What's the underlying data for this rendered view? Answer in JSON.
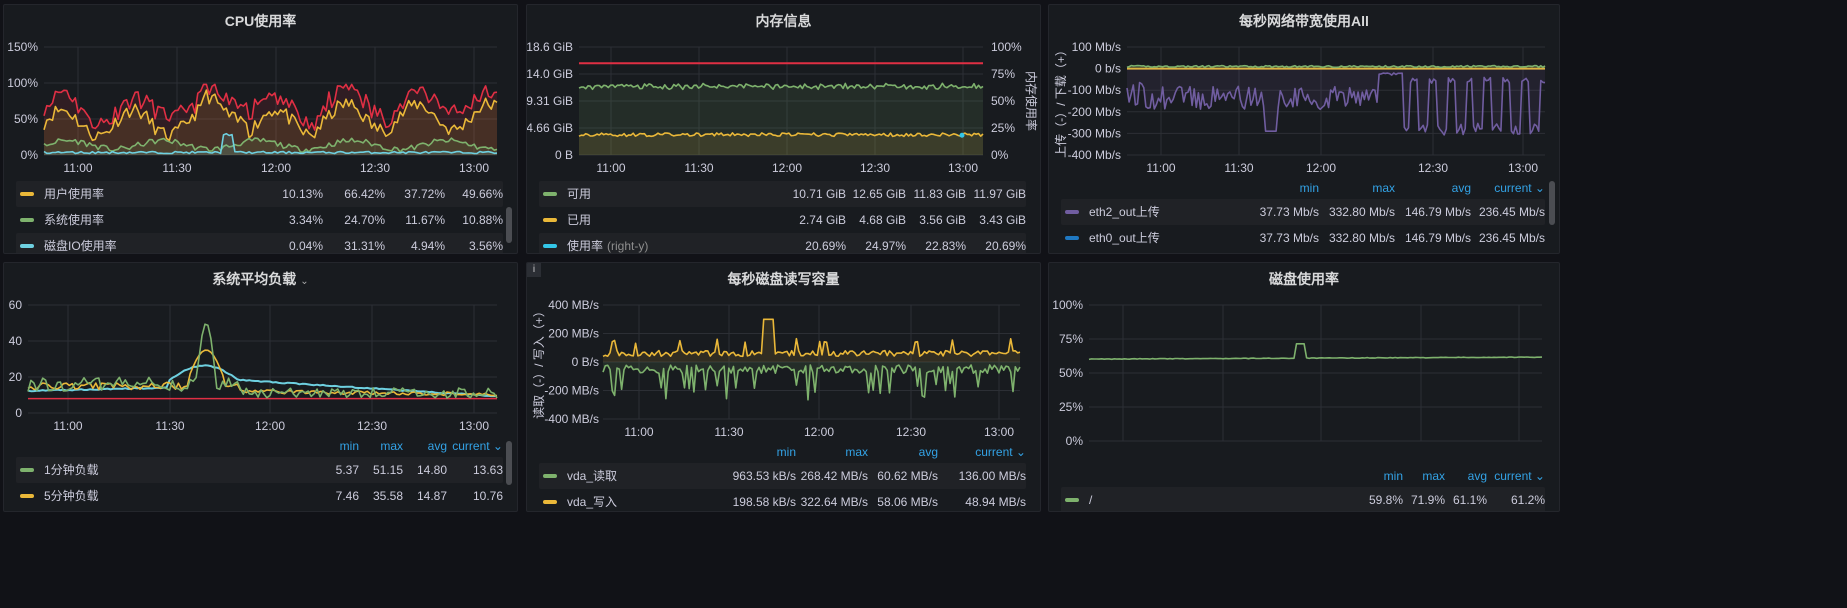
{
  "colors": {
    "panel_bg": "#181b1f",
    "grid": "#2c2f35",
    "accent_header": "#33a2e5",
    "red_threshold": "#e02f44"
  },
  "panels": {
    "cpu": {
      "title": "CPU使用率",
      "y_ticks": [
        "150%",
        "100%",
        "50%",
        "0%"
      ],
      "x_ticks": [
        "11:00",
        "11:30",
        "12:00",
        "12:30",
        "13:00"
      ],
      "legend": [
        {
          "name": "用户使用率",
          "color": "#eab839",
          "values": [
            "10.13%",
            "66.42%",
            "37.72%",
            "49.66%"
          ]
        },
        {
          "name": "系统使用率",
          "color": "#7eb26d",
          "values": [
            "3.34%",
            "24.70%",
            "11.67%",
            "10.88%"
          ]
        },
        {
          "name": "磁盘IO使用率",
          "color": "#6ed0e0",
          "values": [
            "0.04%",
            "31.31%",
            "4.94%",
            "3.56%"
          ]
        }
      ]
    },
    "memory": {
      "title": "内存信息",
      "y_ticks_left": [
        "18.6 GiB",
        "14.0 GiB",
        "9.31 GiB",
        "4.66 GiB",
        "0 B"
      ],
      "y_ticks_right": [
        "100%",
        "75%",
        "50%",
        "25%",
        "0%"
      ],
      "y_label_right": "内存使用率",
      "x_ticks": [
        "11:00",
        "11:30",
        "12:00",
        "12:30",
        "13:00"
      ],
      "legend": [
        {
          "name": "可用",
          "suffix": "",
          "color": "#7eb26d",
          "values": [
            "10.71 GiB",
            "12.65 GiB",
            "11.83 GiB",
            "11.97 GiB"
          ]
        },
        {
          "name": "已用",
          "suffix": "",
          "color": "#eab839",
          "values": [
            "2.74 GiB",
            "4.68 GiB",
            "3.56 GiB",
            "3.43 GiB"
          ]
        },
        {
          "name": "使用率",
          "suffix": "(right-y)",
          "color": "#33c6e8",
          "values": [
            "20.69%",
            "24.97%",
            "22.83%",
            "20.69%"
          ]
        }
      ]
    },
    "network": {
      "title": "每秒网络带宽使用All",
      "y_ticks": [
        "100 Mb/s",
        "0 b/s",
        "-100 Mb/s",
        "-200 Mb/s",
        "-300 Mb/s",
        "-400 Mb/s"
      ],
      "y_label": "上传（-）/ 下载（+）",
      "x_ticks": [
        "11:00",
        "11:30",
        "12:00",
        "12:30",
        "13:00"
      ],
      "headers": [
        "min",
        "max",
        "avg",
        "current"
      ],
      "legend": [
        {
          "name": "eth2_out上传",
          "color": "#705da0",
          "values": [
            "37.73 Mb/s",
            "332.80 Mb/s",
            "146.79 Mb/s",
            "236.45 Mb/s"
          ]
        },
        {
          "name": "eth0_out上传",
          "color": "#1f78c1",
          "values": [
            "37.73 Mb/s",
            "332.80 Mb/s",
            "146.79 Mb/s",
            "236.45 Mb/s"
          ]
        }
      ]
    },
    "load": {
      "title": "系统平均负载",
      "y_ticks": [
        "60",
        "40",
        "20",
        "0"
      ],
      "x_ticks": [
        "11:00",
        "11:30",
        "12:00",
        "12:30",
        "13:00"
      ],
      "headers": [
        "min",
        "max",
        "avg",
        "current"
      ],
      "legend": [
        {
          "name": "1分钟负载",
          "color": "#7eb26d",
          "values": [
            "5.37",
            "51.15",
            "14.80",
            "13.63"
          ]
        },
        {
          "name": "5分钟负载",
          "color": "#eab839",
          "values": [
            "7.46",
            "35.58",
            "14.87",
            "10.76"
          ]
        }
      ]
    },
    "disk_io": {
      "title": "每秒磁盘读写容量",
      "info": "i",
      "y_ticks": [
        "400 MB/s",
        "200 MB/s",
        "0 B/s",
        "-200 MB/s",
        "-400 MB/s"
      ],
      "y_label": "读取（-）/ 写入（+）",
      "x_ticks": [
        "11:00",
        "11:30",
        "12:00",
        "12:30",
        "13:00"
      ],
      "headers": [
        "min",
        "max",
        "avg",
        "current"
      ],
      "legend": [
        {
          "name": "vda_读取",
          "color": "#7eb26d",
          "values": [
            "963.53 kB/s",
            "268.42 MB/s",
            "60.62 MB/s",
            "136.00 MB/s"
          ]
        },
        {
          "name": "vda_写入",
          "color": "#eab839",
          "values": [
            "198.58 kB/s",
            "322.64 MB/s",
            "58.06 MB/s",
            "48.94 MB/s"
          ]
        }
      ]
    },
    "disk_usage": {
      "title": "磁盘使用率",
      "y_ticks": [
        "100%",
        "75%",
        "50%",
        "25%",
        "0%"
      ],
      "x_ticks": [
        "11:00",
        "11:30",
        "12:00",
        "12:30",
        "13:00"
      ],
      "headers": [
        "min",
        "max",
        "avg",
        "current"
      ],
      "legend": [
        {
          "name": "/",
          "color": "#7eb26d",
          "values": [
            "59.8%",
            "71.9%",
            "61.1%",
            "61.2%"
          ]
        }
      ]
    }
  }
}
